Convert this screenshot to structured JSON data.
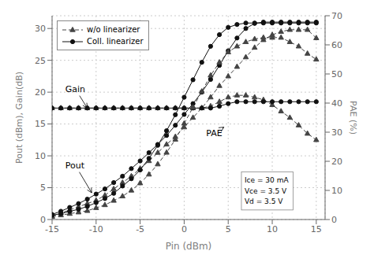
{
  "chart_data": {
    "type": "line",
    "x_label": "Pin (dBm)",
    "y_label": "Pout (dBm), Gain(dB)",
    "y2_label": "PAE (%)",
    "x": [
      -15,
      -14,
      -13,
      -12,
      -11,
      -10,
      -9,
      -8,
      -7,
      -6,
      -5,
      -4,
      -3,
      -2,
      -1,
      0,
      1,
      2,
      3,
      4,
      5,
      6,
      7,
      8,
      9,
      10,
      11,
      12,
      13,
      14,
      15
    ],
    "xlim": [
      -15,
      16
    ],
    "xticks": [
      -15,
      -10,
      -5,
      0,
      5,
      10,
      15
    ],
    "ylim": [
      0,
      32
    ],
    "yticks": [
      0,
      5,
      10,
      15,
      20,
      25,
      30
    ],
    "y2lim": [
      0,
      70
    ],
    "y2ticks": [
      0,
      10,
      20,
      30,
      40,
      50,
      60,
      70
    ],
    "grid": true,
    "legend": "upper left",
    "series": [
      {
        "name": "w/o linearizer",
        "color": "#444444",
        "marker": "triangle",
        "line_style": "dashed",
        "values": [
          0.5,
          1.0,
          1.5,
          2.0,
          2.5,
          3.0,
          3.8,
          4.8,
          5.8,
          6.8,
          8.0,
          9.2,
          10.5,
          11.8,
          13.0,
          14.5,
          16.0,
          17.5,
          19.2,
          21.0,
          22.5,
          24.0,
          25.5,
          27.0,
          28.2,
          29.0,
          29.5,
          29.8,
          29.8,
          29.8,
          28.5
        ]
      },
      {
        "name": "Coll. linearizer",
        "color": "#111111",
        "marker": "circle",
        "line_style": "solid",
        "values": [
          0.8,
          1.3,
          1.9,
          2.5,
          3.2,
          4.0,
          4.8,
          5.8,
          6.8,
          8.0,
          9.2,
          10.5,
          11.8,
          13.2,
          14.8,
          16.5,
          18.2,
          20.0,
          22.0,
          24.2,
          26.5,
          28.5,
          30.0,
          30.8,
          31.0,
          31.0,
          31.0,
          31.0,
          31.0,
          31.0,
          31.0
        ]
      },
      {
        "name": "w/o linearizer",
        "color": "#444444",
        "marker": "triangle",
        "line_style": "dashed",
        "values": [
          17.5,
          17.5,
          17.5,
          17.5,
          17.5,
          17.5,
          17.5,
          17.5,
          17.5,
          17.5,
          17.5,
          17.5,
          17.5,
          17.5,
          17.5,
          17.5,
          17.5,
          17.5,
          17.8,
          18.5,
          19.2,
          19.5,
          19.5,
          19.2,
          18.8,
          18.0,
          17.0,
          16.0,
          14.8,
          13.5,
          12.5
        ]
      },
      {
        "name": "Coll. linearizer",
        "color": "#111111",
        "marker": "circle",
        "line_style": "solid",
        "values": [
          17.5,
          17.5,
          17.5,
          17.5,
          17.5,
          17.5,
          17.5,
          17.5,
          17.5,
          17.5,
          17.5,
          17.5,
          17.5,
          17.5,
          17.5,
          17.5,
          17.5,
          17.5,
          17.5,
          17.8,
          18.2,
          18.5,
          18.5,
          18.5,
          18.5,
          18.5,
          18.5,
          18.5,
          18.5,
          18.5,
          18.5
        ]
      },
      {
        "name": "w/o linearizer",
        "color": "#444444",
        "marker": "triangle",
        "line_style": "dashed",
        "axis": "y2",
        "values": [
          1.0,
          1.5,
          2.0,
          2.5,
          3.0,
          4.0,
          5.0,
          6.5,
          8.0,
          10.0,
          12.5,
          15.5,
          19.0,
          23.0,
          27.5,
          33.0,
          38.5,
          44.0,
          49.5,
          54.0,
          57.5,
          59.5,
          61.0,
          62.0,
          62.5,
          62.5,
          62.5,
          61.0,
          59.5,
          57.0,
          55.0
        ]
      },
      {
        "name": "Coll. linearizer",
        "color": "#111111",
        "marker": "circle",
        "line_style": "solid",
        "axis": "y2",
        "values": [
          1.5,
          2.0,
          2.8,
          3.5,
          4.5,
          5.8,
          7.2,
          9.0,
          11.5,
          14.0,
          17.0,
          21.0,
          25.5,
          30.5,
          36.0,
          42.0,
          48.0,
          54.0,
          59.5,
          63.5,
          66.0,
          67.0,
          67.5,
          67.5,
          67.5,
          67.5,
          67.5,
          67.5,
          67.5,
          67.5,
          67.5
        ]
      }
    ],
    "annotations": [
      {
        "text": "Gain",
        "x": -11,
        "y": 17.5,
        "text_x": -13.5,
        "text_y": 20.5
      },
      {
        "text": "Pout",
        "x": -10.5,
        "y": 4.2,
        "text_x": -13.5,
        "text_y": 8.5
      },
      {
        "text": "PAE",
        "x": 4.5,
        "y": 14.5,
        "text_x": 2.5,
        "text_y": 13.5
      },
      {
        "text": "Ice = 30 mA\nVce = 3.5 V\nVd = 3.5 V",
        "x": 6.5,
        "y": 1.5
      }
    ]
  }
}
